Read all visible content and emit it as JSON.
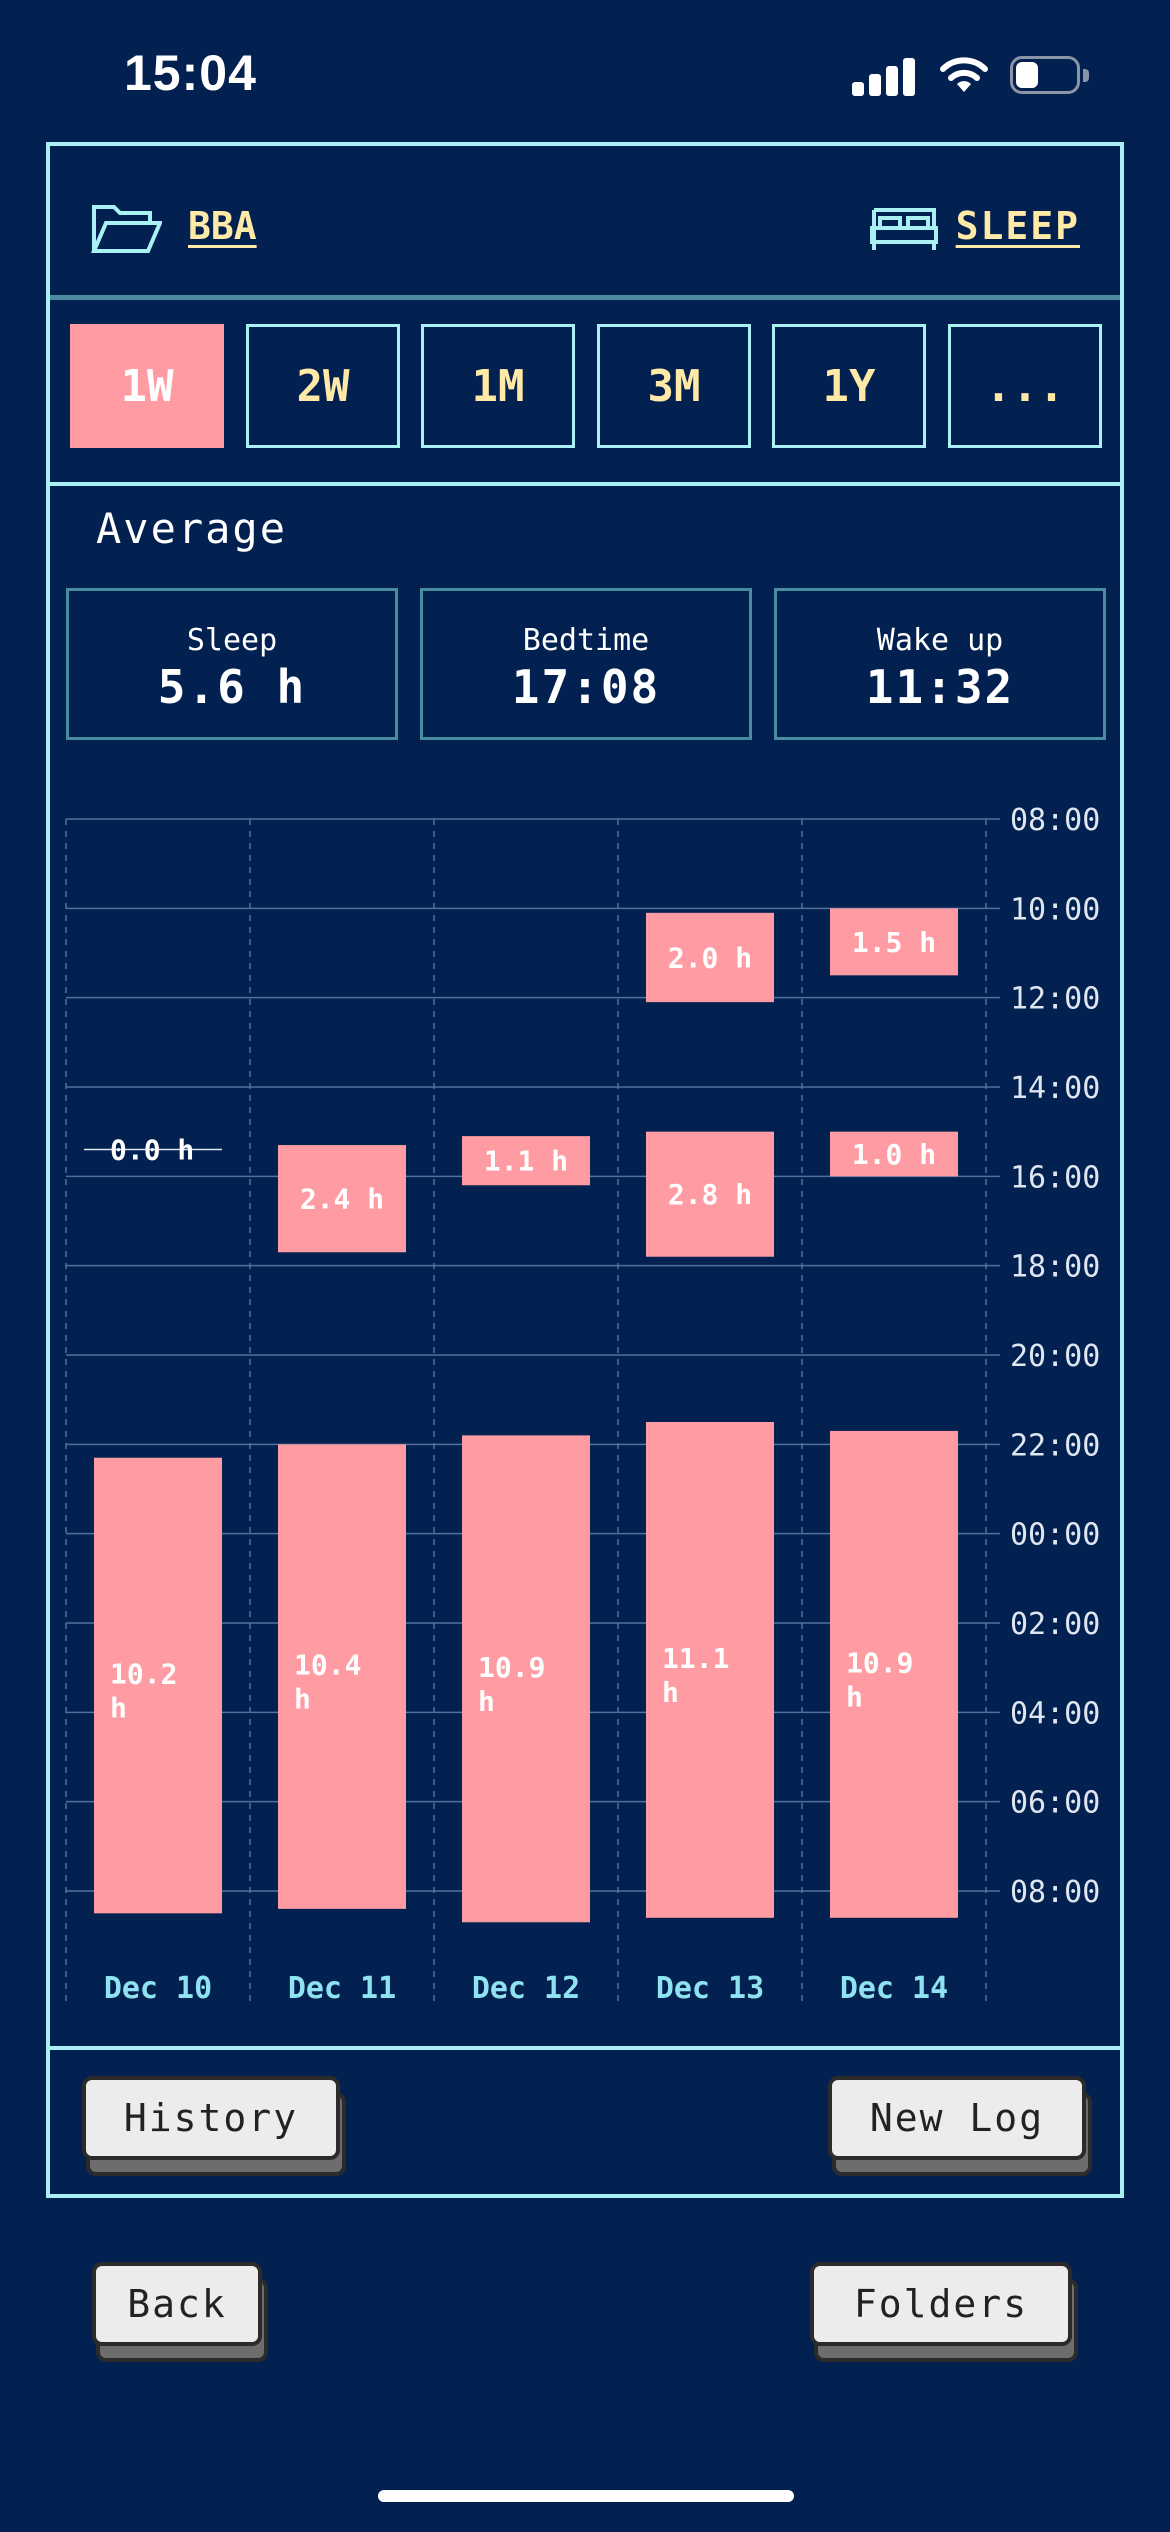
{
  "status_bar": {
    "time": "15:04"
  },
  "header": {
    "folder_name": "BBA",
    "category": "SLEEP"
  },
  "range_tabs": [
    {
      "label": "1W",
      "active": true
    },
    {
      "label": "2W",
      "active": false
    },
    {
      "label": "1M",
      "active": false
    },
    {
      "label": "3M",
      "active": false
    },
    {
      "label": "1Y",
      "active": false
    },
    {
      "label": "...",
      "active": false
    }
  ],
  "average": {
    "title": "Average",
    "stats": [
      {
        "label": "Sleep",
        "value": "5.6 h"
      },
      {
        "label": "Bedtime",
        "value": "17:08"
      },
      {
        "label": "Wake up",
        "value": "11:32"
      }
    ]
  },
  "chart_data": {
    "type": "bar",
    "y_tick_labels": [
      "08:00",
      "10:00",
      "12:00",
      "14:00",
      "16:00",
      "18:00",
      "20:00",
      "22:00",
      "00:00",
      "02:00",
      "04:00",
      "06:00",
      "08:00"
    ],
    "y_axis_start_hour": 8,
    "y_axis_span_hours": 24,
    "categories": [
      "Dec 10",
      "Dec 11",
      "Dec 12",
      "Dec 13",
      "Dec 14"
    ],
    "sessions": [
      [
        {
          "start_hour": 15.4,
          "end_hour": 15.4,
          "label": "0.0 h"
        },
        {
          "start_hour": 22.3,
          "end_hour": 32.5,
          "label": "10.2 h"
        }
      ],
      [
        {
          "start_hour": 15.3,
          "end_hour": 17.7,
          "label": "2.4 h"
        },
        {
          "start_hour": 22.0,
          "end_hour": 32.4,
          "label": "10.4 h"
        }
      ],
      [
        {
          "start_hour": 15.1,
          "end_hour": 16.2,
          "label": "1.1 h"
        },
        {
          "start_hour": 21.8,
          "end_hour": 32.7,
          "label": "10.9 h"
        }
      ],
      [
        {
          "start_hour": 10.1,
          "end_hour": 12.1,
          "label": "2.0 h"
        },
        {
          "start_hour": 15.0,
          "end_hour": 17.8,
          "label": "2.8 h"
        },
        {
          "start_hour": 21.5,
          "end_hour": 32.6,
          "label": "11.1 h"
        }
      ],
      [
        {
          "start_hour": 10.0,
          "end_hour": 11.5,
          "label": "1.5 h"
        },
        {
          "start_hour": 15.0,
          "end_hour": 16.0,
          "label": "1.0 h"
        },
        {
          "start_hour": 21.7,
          "end_hour": 32.6,
          "label": "10.9 h"
        }
      ]
    ],
    "colors": {
      "bar": "#ff9ca3",
      "grid": "#52709a",
      "tick_label": "#dfe6f0",
      "date_label": "#8fe3f0"
    }
  },
  "footer": {
    "history_label": "History",
    "new_log_label": "New Log"
  },
  "bottom_nav": {
    "back_label": "Back",
    "folders_label": "Folders"
  }
}
